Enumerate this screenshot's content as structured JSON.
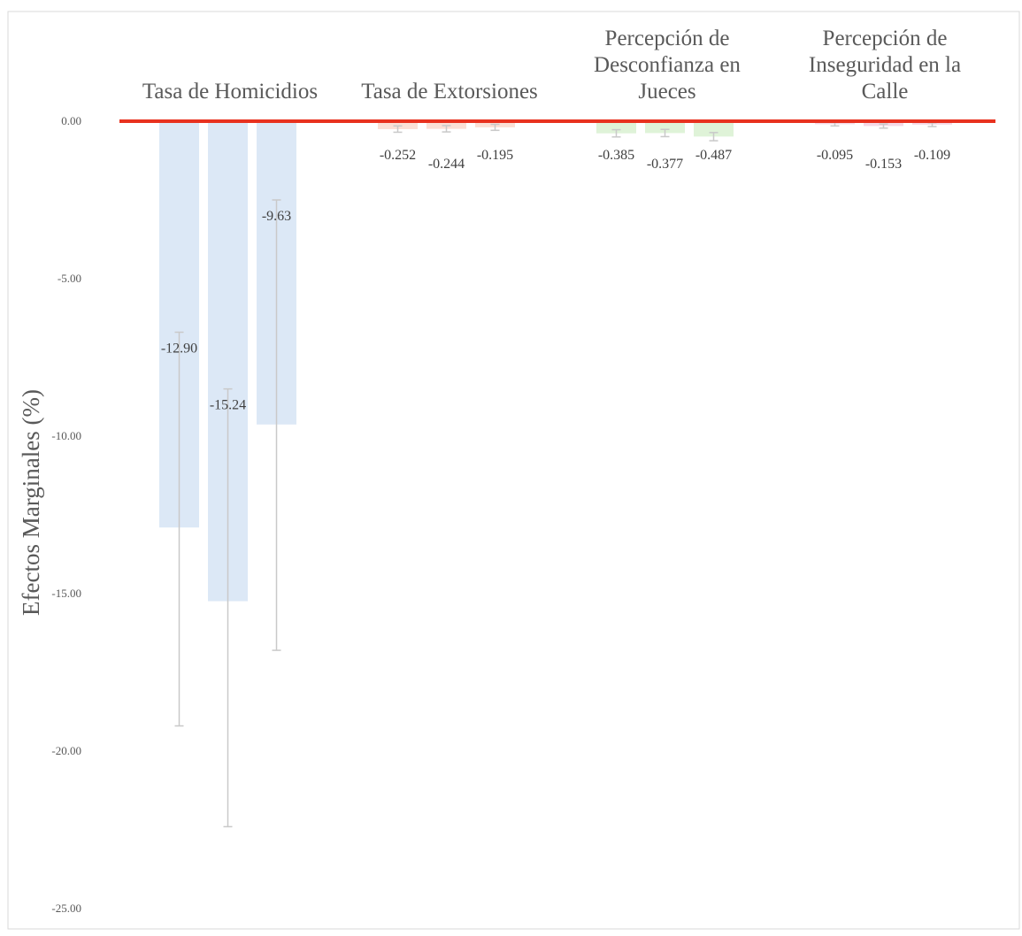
{
  "chart_data": {
    "type": "bar",
    "title": "",
    "xlabel": "",
    "ylabel": "Efectos Marginales (%)",
    "ylim": [
      -25,
      0
    ],
    "yticks": [
      0,
      -5,
      -10,
      -15,
      -20,
      -25
    ],
    "ytick_labels": [
      "0.00",
      "-5.00",
      "-10.00",
      "-15.00",
      "-20.00",
      "-25.00"
    ],
    "grid": false,
    "legend": "none",
    "zero_line_color": "#e8321f",
    "groups": [
      {
        "label_lines": [
          "Tasa de Homicidios"
        ],
        "color": "#dce8f6",
        "bars": [
          {
            "value": -12.9,
            "label": "-12.90",
            "ci": [
              -19.2,
              -6.7
            ]
          },
          {
            "value": -15.24,
            "label": "-15.24",
            "ci": [
              -22.4,
              -8.5
            ]
          },
          {
            "value": -9.63,
            "label": "-9.63",
            "ci": [
              -16.8,
              -2.5
            ]
          }
        ]
      },
      {
        "label_lines": [
          "Tasa de Extorsiones"
        ],
        "color": "#fbe0d6",
        "bars": [
          {
            "value": -0.252,
            "label": "-0.252",
            "ci": [
              -0.35,
              -0.15
            ]
          },
          {
            "value": -0.244,
            "label": "-0.244",
            "ci": [
              -0.34,
              -0.14
            ]
          },
          {
            "value": -0.195,
            "label": "-0.195",
            "ci": [
              -0.29,
              -0.1
            ]
          }
        ]
      },
      {
        "label_lines": [
          "Percepción de",
          "Desconfianza en",
          "Jueces"
        ],
        "color": "#dff3d8",
        "bars": [
          {
            "value": -0.385,
            "label": "-0.385",
            "ci": [
              -0.5,
              -0.27
            ]
          },
          {
            "value": -0.377,
            "label": "-0.377",
            "ci": [
              -0.49,
              -0.26
            ]
          },
          {
            "value": -0.487,
            "label": "-0.487",
            "ci": [
              -0.62,
              -0.36
            ]
          }
        ]
      },
      {
        "label_lines": [
          "Percepción de",
          "Inseguridad en la",
          "Calle"
        ],
        "color": "#f5d9e6",
        "bars": [
          {
            "value": -0.095,
            "label": "-0.095",
            "ci": [
              -0.15,
              -0.04
            ]
          },
          {
            "value": -0.153,
            "label": "-0.153",
            "ci": [
              -0.22,
              -0.09
            ]
          },
          {
            "value": -0.109,
            "label": "-0.109",
            "ci": [
              -0.17,
              -0.05
            ]
          }
        ]
      }
    ]
  }
}
